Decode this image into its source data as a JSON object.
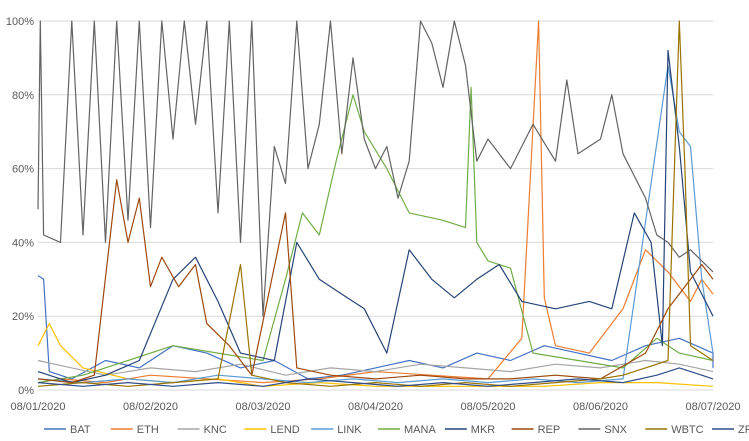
{
  "chart_data": {
    "type": "line",
    "title": "",
    "xlabel": "",
    "ylabel": "",
    "x": [
      "08/01/2020",
      "08/02/2020",
      "08/03/2020",
      "08/04/2020",
      "08/05/2020",
      "08/06/2020",
      "08/07/2020"
    ],
    "x_ticks": [
      "08/01/2020",
      "08/02/2020",
      "08/03/2020",
      "08/04/2020",
      "08/05/2020",
      "08/06/2020",
      "08/07/2020"
    ],
    "ylim": [
      0,
      100
    ],
    "y_ticks": [
      "0%",
      "20%",
      "40%",
      "60%",
      "80%",
      "100%"
    ],
    "grid": true,
    "legend": "bottom",
    "series": [
      {
        "name": "BAT",
        "color": "#4472c4",
        "points": [
          [
            0,
            31
          ],
          [
            0.05,
            30
          ],
          [
            0.1,
            5
          ],
          [
            0.3,
            3
          ],
          [
            0.6,
            8
          ],
          [
            0.9,
            6
          ],
          [
            1.2,
            12
          ],
          [
            1.5,
            10
          ],
          [
            1.8,
            6
          ],
          [
            2.1,
            8
          ],
          [
            2.4,
            3
          ],
          [
            2.7,
            4
          ],
          [
            3.0,
            6
          ],
          [
            3.3,
            8
          ],
          [
            3.6,
            6
          ],
          [
            3.9,
            10
          ],
          [
            4.2,
            8
          ],
          [
            4.5,
            12
          ],
          [
            4.8,
            10
          ],
          [
            5.1,
            8
          ],
          [
            5.4,
            12
          ],
          [
            5.7,
            14
          ],
          [
            6.0,
            10
          ],
          [
            6.0,
            6
          ]
        ]
      },
      {
        "name": "ETH",
        "color": "#ed7d31",
        "points": [
          [
            0,
            2
          ],
          [
            0.2,
            3
          ],
          [
            0.6,
            2
          ],
          [
            1.0,
            4
          ],
          [
            1.5,
            3
          ],
          [
            2.0,
            2
          ],
          [
            2.5,
            3
          ],
          [
            3.0,
            5
          ],
          [
            3.5,
            4
          ],
          [
            4.0,
            3
          ],
          [
            4.3,
            14
          ],
          [
            4.45,
            100
          ],
          [
            4.5,
            25
          ],
          [
            4.6,
            12
          ],
          [
            4.9,
            10
          ],
          [
            5.2,
            22
          ],
          [
            5.4,
            38
          ],
          [
            5.6,
            32
          ],
          [
            5.8,
            24
          ],
          [
            5.9,
            30
          ],
          [
            6.0,
            26
          ]
        ]
      },
      {
        "name": "KNC",
        "color": "#a5a5a5",
        "points": [
          [
            0,
            8
          ],
          [
            0.3,
            6
          ],
          [
            0.6,
            4
          ],
          [
            1.0,
            6
          ],
          [
            1.4,
            5
          ],
          [
            1.8,
            7
          ],
          [
            2.2,
            4
          ],
          [
            2.6,
            6
          ],
          [
            3.0,
            5
          ],
          [
            3.4,
            7
          ],
          [
            3.8,
            6
          ],
          [
            4.2,
            5
          ],
          [
            4.6,
            7
          ],
          [
            5.0,
            6
          ],
          [
            5.4,
            8
          ],
          [
            5.7,
            7
          ],
          [
            6.0,
            5
          ]
        ]
      },
      {
        "name": "LEND",
        "color": "#ffc000",
        "points": [
          [
            0,
            12
          ],
          [
            0.1,
            18
          ],
          [
            0.2,
            12
          ],
          [
            0.4,
            6
          ],
          [
            0.8,
            3
          ],
          [
            1.2,
            2
          ],
          [
            1.6,
            3
          ],
          [
            2.0,
            1
          ],
          [
            2.5,
            2
          ],
          [
            3.0,
            1
          ],
          [
            3.5,
            1
          ],
          [
            4.0,
            1
          ],
          [
            4.5,
            1
          ],
          [
            5.0,
            2
          ],
          [
            5.5,
            2
          ],
          [
            6.0,
            1
          ]
        ]
      },
      {
        "name": "LINK",
        "color": "#5b9bd5",
        "points": [
          [
            0,
            3
          ],
          [
            0.4,
            2
          ],
          [
            0.8,
            3
          ],
          [
            1.2,
            2
          ],
          [
            1.6,
            4
          ],
          [
            2.0,
            3
          ],
          [
            2.4,
            2
          ],
          [
            2.8,
            3
          ],
          [
            3.2,
            2
          ],
          [
            3.6,
            3
          ],
          [
            4.0,
            2
          ],
          [
            4.4,
            3
          ],
          [
            4.8,
            2
          ],
          [
            5.2,
            3
          ],
          [
            5.6,
            88
          ],
          [
            5.7,
            70
          ],
          [
            5.8,
            66
          ],
          [
            5.9,
            30
          ],
          [
            6.0,
            10
          ]
        ]
      },
      {
        "name": "MANA",
        "color": "#70ad47",
        "points": [
          [
            0,
            2
          ],
          [
            0.4,
            4
          ],
          [
            0.8,
            8
          ],
          [
            1.2,
            12
          ],
          [
            1.6,
            10
          ],
          [
            2.0,
            8
          ],
          [
            2.2,
            30
          ],
          [
            2.35,
            48
          ],
          [
            2.5,
            42
          ],
          [
            2.65,
            62
          ],
          [
            2.8,
            80
          ],
          [
            2.9,
            70
          ],
          [
            3.1,
            60
          ],
          [
            3.3,
            48
          ],
          [
            3.6,
            46
          ],
          [
            3.8,
            44
          ],
          [
            3.85,
            82
          ],
          [
            3.9,
            40
          ],
          [
            4.0,
            35
          ],
          [
            4.2,
            33
          ],
          [
            4.4,
            10
          ],
          [
            4.8,
            8
          ],
          [
            5.2,
            6
          ],
          [
            5.5,
            14
          ],
          [
            5.7,
            10
          ],
          [
            6.0,
            8
          ]
        ]
      },
      {
        "name": "MKR",
        "color": "#264478",
        "points": [
          [
            0,
            5
          ],
          [
            0.3,
            2
          ],
          [
            0.6,
            4
          ],
          [
            0.9,
            8
          ],
          [
            1.2,
            30
          ],
          [
            1.4,
            36
          ],
          [
            1.6,
            24
          ],
          [
            1.8,
            10
          ],
          [
            2.1,
            8
          ],
          [
            2.3,
            40
          ],
          [
            2.5,
            30
          ],
          [
            2.7,
            26
          ],
          [
            2.9,
            22
          ],
          [
            3.1,
            10
          ],
          [
            3.3,
            38
          ],
          [
            3.5,
            30
          ],
          [
            3.7,
            25
          ],
          [
            3.9,
            30
          ],
          [
            4.1,
            34
          ],
          [
            4.3,
            24
          ],
          [
            4.6,
            22
          ],
          [
            4.9,
            24
          ],
          [
            5.1,
            22
          ],
          [
            5.3,
            48
          ],
          [
            5.45,
            40
          ],
          [
            5.55,
            12
          ],
          [
            5.6,
            92
          ],
          [
            5.7,
            66
          ],
          [
            5.8,
            32
          ],
          [
            5.9,
            26
          ],
          [
            6.0,
            20
          ]
        ]
      },
      {
        "name": "REP",
        "color": "#9e480e",
        "points": [
          [
            0,
            3
          ],
          [
            0.3,
            2
          ],
          [
            0.5,
            4
          ],
          [
            0.7,
            57
          ],
          [
            0.8,
            40
          ],
          [
            0.9,
            52
          ],
          [
            1.0,
            28
          ],
          [
            1.1,
            36
          ],
          [
            1.25,
            28
          ],
          [
            1.4,
            34
          ],
          [
            1.5,
            18
          ],
          [
            1.7,
            12
          ],
          [
            1.9,
            4
          ],
          [
            2.2,
            48
          ],
          [
            2.3,
            6
          ],
          [
            2.6,
            4
          ],
          [
            3.0,
            3
          ],
          [
            3.4,
            4
          ],
          [
            3.8,
            3
          ],
          [
            4.2,
            3
          ],
          [
            4.6,
            4
          ],
          [
            5.0,
            3
          ],
          [
            5.4,
            10
          ],
          [
            5.6,
            22
          ],
          [
            5.8,
            30
          ],
          [
            5.9,
            34
          ],
          [
            6.0,
            30
          ]
        ]
      },
      {
        "name": "SNX",
        "color": "#636363",
        "points": [
          [
            0,
            49
          ],
          [
            0.02,
            100
          ],
          [
            0.05,
            42
          ],
          [
            0.2,
            40
          ],
          [
            0.3,
            100
          ],
          [
            0.4,
            42
          ],
          [
            0.5,
            100
          ],
          [
            0.6,
            40
          ],
          [
            0.7,
            100
          ],
          [
            0.8,
            46
          ],
          [
            0.9,
            100
          ],
          [
            1.0,
            44
          ],
          [
            1.1,
            100
          ],
          [
            1.2,
            68
          ],
          [
            1.3,
            100
          ],
          [
            1.4,
            72
          ],
          [
            1.5,
            100
          ],
          [
            1.6,
            48
          ],
          [
            1.7,
            100
          ],
          [
            1.8,
            40
          ],
          [
            1.9,
            100
          ],
          [
            2.0,
            20
          ],
          [
            2.1,
            66
          ],
          [
            2.2,
            56
          ],
          [
            2.3,
            100
          ],
          [
            2.4,
            60
          ],
          [
            2.5,
            72
          ],
          [
            2.6,
            100
          ],
          [
            2.7,
            64
          ],
          [
            2.8,
            90
          ],
          [
            2.9,
            68
          ],
          [
            3.0,
            60
          ],
          [
            3.1,
            66
          ],
          [
            3.2,
            52
          ],
          [
            3.3,
            62
          ],
          [
            3.4,
            100
          ],
          [
            3.5,
            94
          ],
          [
            3.6,
            82
          ],
          [
            3.7,
            100
          ],
          [
            3.8,
            88
          ],
          [
            3.9,
            62
          ],
          [
            4.0,
            68
          ],
          [
            4.2,
            60
          ],
          [
            4.4,
            72
          ],
          [
            4.6,
            62
          ],
          [
            4.7,
            84
          ],
          [
            4.8,
            64
          ],
          [
            5.0,
            68
          ],
          [
            5.1,
            80
          ],
          [
            5.2,
            64
          ],
          [
            5.3,
            58
          ],
          [
            5.4,
            52
          ],
          [
            5.5,
            42
          ],
          [
            5.6,
            40
          ],
          [
            5.7,
            36
          ],
          [
            5.8,
            38
          ],
          [
            6.0,
            32
          ]
        ]
      },
      {
        "name": "WBTC",
        "color": "#997300",
        "points": [
          [
            0,
            1
          ],
          [
            0.4,
            2
          ],
          [
            0.8,
            1
          ],
          [
            1.2,
            2
          ],
          [
            1.6,
            3
          ],
          [
            1.8,
            34
          ],
          [
            1.9,
            4
          ],
          [
            2.2,
            2
          ],
          [
            2.6,
            1
          ],
          [
            3.0,
            2
          ],
          [
            3.4,
            1
          ],
          [
            3.8,
            2
          ],
          [
            4.2,
            1
          ],
          [
            4.6,
            2
          ],
          [
            5.0,
            3
          ],
          [
            5.2,
            4
          ],
          [
            5.4,
            6
          ],
          [
            5.6,
            8
          ],
          [
            5.7,
            100
          ],
          [
            5.75,
            60
          ],
          [
            5.8,
            12
          ],
          [
            6.0,
            8
          ]
        ]
      },
      {
        "name": "ZRX",
        "color": "#2e4b8b",
        "points": [
          [
            0,
            2
          ],
          [
            0.4,
            1
          ],
          [
            0.8,
            2
          ],
          [
            1.2,
            1
          ],
          [
            1.6,
            2
          ],
          [
            2.0,
            1
          ],
          [
            2.4,
            3
          ],
          [
            2.8,
            2
          ],
          [
            3.2,
            1
          ],
          [
            3.6,
            2
          ],
          [
            4.0,
            1
          ],
          [
            4.4,
            2
          ],
          [
            4.8,
            3
          ],
          [
            5.2,
            2
          ],
          [
            5.5,
            4
          ],
          [
            5.7,
            6
          ],
          [
            5.9,
            4
          ],
          [
            6.0,
            3
          ]
        ]
      }
    ]
  }
}
